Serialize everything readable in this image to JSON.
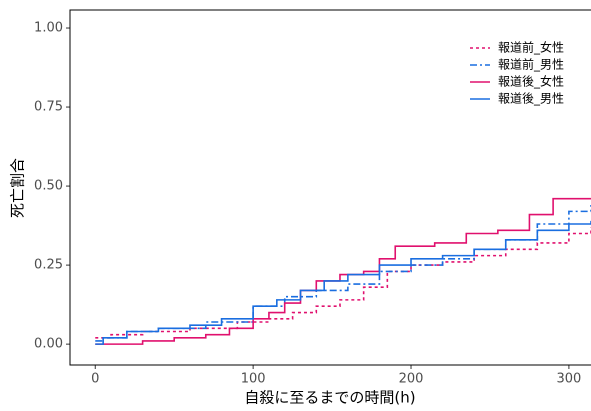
{
  "chart_data": {
    "type": "line",
    "step": "post",
    "x_label": "自殺に至るまでの時間(h)",
    "y_label": "死亡割合",
    "xlim": [
      -16,
      314
    ],
    "ylim": [
      -0.066,
      1.057
    ],
    "xticks": [
      0,
      100,
      200,
      300
    ],
    "yticks": [
      {
        "value": 0,
        "label": "0.00"
      },
      {
        "value": 0.25,
        "label": "0.25"
      },
      {
        "value": 0.5,
        "label": "0.50"
      },
      {
        "value": 0.75,
        "label": "0.75"
      },
      {
        "value": 1,
        "label": "1.00"
      }
    ],
    "legend_position": "top-right",
    "series": [
      {
        "name": "報道前_女性",
        "color": "#e0106e",
        "dash": "dotted",
        "x": [
          0,
          10,
          30,
          60,
          90,
          110,
          125,
          140,
          155,
          170,
          185,
          200,
          220,
          240,
          260,
          280,
          300,
          314
        ],
        "values": [
          0.02,
          0.03,
          0.04,
          0.05,
          0.07,
          0.08,
          0.1,
          0.12,
          0.14,
          0.18,
          0.23,
          0.25,
          0.26,
          0.28,
          0.3,
          0.32,
          0.35,
          0.37
        ]
      },
      {
        "name": "報道前_男性",
        "color": "#1a6ee0",
        "dash": "dashdot",
        "x": [
          0,
          5,
          20,
          40,
          70,
          100,
          120,
          140,
          160,
          180,
          200,
          220,
          240,
          260,
          280,
          300,
          314
        ],
        "values": [
          0.01,
          0.02,
          0.04,
          0.05,
          0.07,
          0.12,
          0.15,
          0.17,
          0.19,
          0.23,
          0.25,
          0.27,
          0.3,
          0.33,
          0.38,
          0.42,
          0.44
        ]
      },
      {
        "name": "報道後_女性",
        "color": "#e0106e",
        "dash": "solid",
        "x": [
          0,
          30,
          50,
          70,
          85,
          100,
          110,
          120,
          130,
          140,
          155,
          170,
          180,
          190,
          215,
          235,
          255,
          275,
          290,
          314
        ],
        "values": [
          0,
          0.01,
          0.02,
          0.03,
          0.05,
          0.08,
          0.1,
          0.13,
          0.17,
          0.2,
          0.22,
          0.23,
          0.27,
          0.31,
          0.32,
          0.35,
          0.36,
          0.41,
          0.46,
          0.46
        ]
      },
      {
        "name": "報道後_男性",
        "color": "#1a6ee0",
        "dash": "solid",
        "x": [
          0,
          5,
          20,
          40,
          60,
          80,
          100,
          115,
          130,
          145,
          160,
          180,
          200,
          220,
          240,
          260,
          280,
          300,
          314
        ],
        "values": [
          0,
          0.02,
          0.04,
          0.05,
          0.06,
          0.08,
          0.12,
          0.14,
          0.17,
          0.2,
          0.22,
          0.25,
          0.27,
          0.28,
          0.3,
          0.33,
          0.36,
          0.38,
          0.39
        ]
      }
    ]
  }
}
